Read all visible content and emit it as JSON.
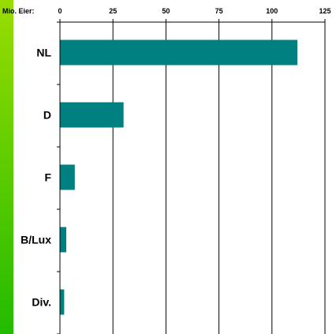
{
  "chart_data": {
    "type": "bar",
    "orientation": "horizontal",
    "unit_label": "Mio. Eier:",
    "categories": [
      "NL",
      "D",
      "F",
      "B/Lux",
      "Div."
    ],
    "values": [
      112,
      30,
      7,
      3,
      2
    ],
    "xlim": [
      0,
      125
    ],
    "xticks": [
      0,
      25,
      50,
      75,
      100,
      125
    ],
    "x_axis_position": "top",
    "grid": "vertical",
    "legend": "none",
    "bar_color": "#008080",
    "accent_colors": [
      "#99dd00",
      "#22bb00"
    ]
  }
}
